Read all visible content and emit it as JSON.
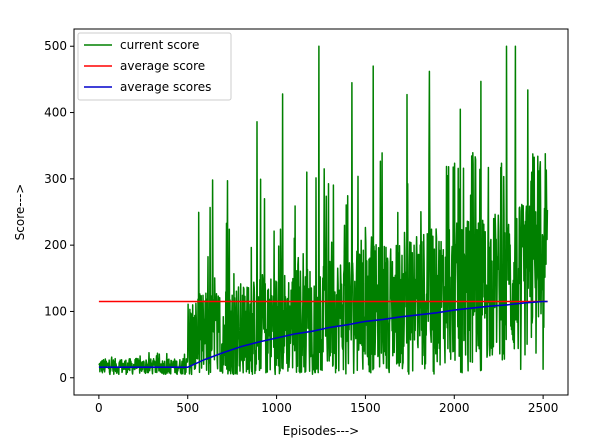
{
  "chart_data": {
    "type": "line",
    "title": "",
    "xlabel": "Episodes--->",
    "ylabel": "Score--->",
    "xlim": [
      -140,
      2640
    ],
    "ylim": [
      -26,
      526
    ],
    "x_ticks": [
      0,
      500,
      1000,
      1500,
      2000,
      2500
    ],
    "y_ticks": [
      0,
      100,
      200,
      300,
      400,
      500
    ],
    "grid": false,
    "legend_position": "upper-left",
    "series": [
      {
        "name": "current score",
        "color": "#008000",
        "style": "noisy-line",
        "x_range": [
          0,
          2525
        ],
        "phases": [
          {
            "x": [
              0,
              500
            ],
            "base": 17,
            "spread": 12,
            "spikes_to": 38
          },
          {
            "x": [
              500,
              2525
            ],
            "base_start": 50,
            "base_end": 140,
            "spread": 110,
            "spikes_to": 500
          }
        ],
        "peaks": [
          {
            "x": 1238,
            "y": 500
          },
          {
            "x": 1545,
            "y": 470
          },
          {
            "x": 1860,
            "y": 462
          },
          {
            "x": 2295,
            "y": 500
          },
          {
            "x": 2345,
            "y": 500
          },
          {
            "x": 1425,
            "y": 445
          },
          {
            "x": 1035,
            "y": 428
          },
          {
            "x": 2150,
            "y": 447
          },
          {
            "x": 2415,
            "y": 434
          },
          {
            "x": 890,
            "y": 386
          },
          {
            "x": 1735,
            "y": 427
          },
          {
            "x": 2035,
            "y": 405
          }
        ]
      },
      {
        "name": "average score",
        "color": "#ff0000",
        "style": "line",
        "x": [
          0,
          2525
        ],
        "y": [
          115,
          115
        ]
      },
      {
        "name": "average scores",
        "color": "#0000cc",
        "style": "line",
        "x": [
          0,
          500,
          550,
          600,
          700,
          800,
          900,
          1000,
          1100,
          1200,
          1300,
          1400,
          1500,
          1600,
          1700,
          1800,
          1900,
          2000,
          2100,
          2200,
          2300,
          2400,
          2500,
          2525
        ],
        "y": [
          16,
          16,
          22,
          28,
          38,
          47,
          54,
          60,
          66,
          70,
          76,
          80,
          85,
          88,
          92,
          95,
          98,
          102,
          105,
          108,
          110,
          113,
          115,
          115
        ]
      }
    ]
  }
}
